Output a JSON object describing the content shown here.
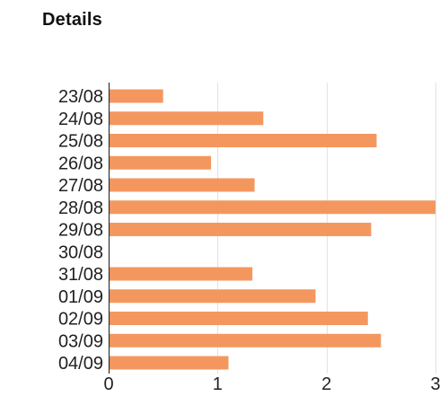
{
  "header": {
    "title": "Details"
  },
  "chart_data": {
    "type": "bar",
    "orientation": "horizontal",
    "title": "Details",
    "categories": [
      "23/08",
      "24/08",
      "25/08",
      "26/08",
      "27/08",
      "28/08",
      "29/08",
      "30/08",
      "31/08",
      "01/09",
      "02/09",
      "03/09",
      "04/09"
    ],
    "values": [
      0.5,
      1.42,
      2.46,
      0.94,
      1.34,
      3.0,
      2.41,
      0,
      1.32,
      1.9,
      2.38,
      2.5,
      1.1
    ],
    "xlim": [
      0,
      3
    ],
    "xticks": [
      0,
      1,
      2,
      3
    ],
    "xlabel": "",
    "ylabel": "",
    "grid": "vertical",
    "bar_color": "#f4975f",
    "grid_color": "#e2e2e2",
    "axis_color": "#333333"
  }
}
